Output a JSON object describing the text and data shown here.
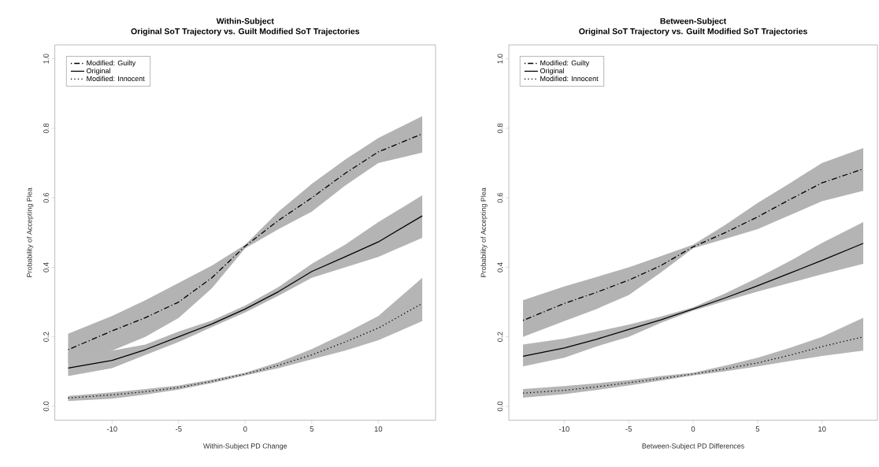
{
  "chart_data": [
    {
      "type": "line",
      "title": "Within-Subject",
      "subtitle": "Original SoT Trajectory vs. Guilt Modified SoT Trajectories",
      "xlabel": "Within-Subject PD Change",
      "ylabel": "Probability of Accepting Plea",
      "x": [
        -13.3,
        -10,
        -7.5,
        -5,
        -2.5,
        0,
        2.5,
        5,
        7.5,
        10,
        13.3
      ],
      "series": [
        {
          "name": "Modified: Guilty",
          "color": "#000000",
          "line_style": "dashdot",
          "values": [
            0.163,
            0.217,
            0.255,
            0.3,
            0.37,
            0.461,
            0.535,
            0.6,
            0.67,
            0.732,
            0.784
          ],
          "lower": [
            0.125,
            0.16,
            0.2,
            0.254,
            0.34,
            0.455,
            0.51,
            0.56,
            0.635,
            0.7,
            0.73
          ],
          "upper": [
            0.209,
            0.26,
            0.305,
            0.355,
            0.405,
            0.465,
            0.56,
            0.64,
            0.71,
            0.772,
            0.835
          ]
        },
        {
          "name": "Original",
          "color": "#000000",
          "line_style": "solid",
          "values": [
            0.11,
            0.132,
            0.163,
            0.2,
            0.237,
            0.28,
            0.33,
            0.388,
            0.43,
            0.473,
            0.548
          ],
          "lower": [
            0.087,
            0.11,
            0.148,
            0.185,
            0.228,
            0.27,
            0.318,
            0.37,
            0.4,
            0.43,
            0.485
          ],
          "upper": [
            0.155,
            0.16,
            0.178,
            0.215,
            0.247,
            0.29,
            0.343,
            0.41,
            0.465,
            0.53,
            0.607
          ]
        },
        {
          "name": "Modified: Innocent",
          "color": "#000000",
          "line_style": "dotted",
          "values": [
            0.024,
            0.033,
            0.042,
            0.054,
            0.072,
            0.093,
            0.118,
            0.148,
            0.185,
            0.225,
            0.296
          ],
          "lower": [
            0.015,
            0.022,
            0.034,
            0.048,
            0.067,
            0.089,
            0.11,
            0.135,
            0.16,
            0.19,
            0.245
          ],
          "upper": [
            0.03,
            0.04,
            0.05,
            0.06,
            0.077,
            0.097,
            0.127,
            0.165,
            0.21,
            0.26,
            0.37
          ]
        }
      ],
      "xlim": [
        -14.3,
        14.3
      ],
      "ylim": [
        -0.04,
        1.04
      ],
      "xticks": [
        -10,
        -5,
        0,
        5,
        10
      ],
      "yticks": [
        {
          "value": 0,
          "label": "0.0"
        },
        {
          "value": 0.2,
          "label": "0.2"
        },
        {
          "value": 0.4,
          "label": "0.4"
        },
        {
          "value": 0.6,
          "label": "0.6"
        },
        {
          "value": 0.8,
          "label": "0.8"
        },
        {
          "value": 1,
          "label": "1.0"
        }
      ],
      "legend": "top left"
    },
    {
      "type": "line",
      "title": "Between-Subject",
      "subtitle": "Original SoT Trajectory vs. Guilt Modified SoT Trajectories",
      "xlabel": "Between-Subject PD Differences",
      "ylabel": "Probability of Accepting Plea",
      "x": [
        -13.2,
        -10,
        -7.5,
        -5,
        -2.5,
        0,
        2.5,
        5,
        7.5,
        10,
        13.2
      ],
      "series": [
        {
          "name": "Modified: Guilty",
          "color": "#000000",
          "line_style": "dashdot",
          "values": [
            0.247,
            0.296,
            0.328,
            0.363,
            0.405,
            0.459,
            0.5,
            0.545,
            0.595,
            0.643,
            0.683
          ],
          "lower": [
            0.2,
            0.245,
            0.28,
            0.32,
            0.385,
            0.455,
            0.482,
            0.51,
            0.55,
            0.59,
            0.62
          ],
          "upper": [
            0.305,
            0.345,
            0.372,
            0.4,
            0.432,
            0.465,
            0.522,
            0.585,
            0.642,
            0.7,
            0.743
          ]
        },
        {
          "name": "Original",
          "color": "#000000",
          "line_style": "solid",
          "values": [
            0.144,
            0.168,
            0.193,
            0.221,
            0.249,
            0.28,
            0.312,
            0.347,
            0.383,
            0.42,
            0.469
          ],
          "lower": [
            0.115,
            0.14,
            0.172,
            0.2,
            0.24,
            0.275,
            0.303,
            0.33,
            0.355,
            0.38,
            0.41
          ],
          "upper": [
            0.178,
            0.195,
            0.215,
            0.235,
            0.258,
            0.285,
            0.325,
            0.37,
            0.418,
            0.47,
            0.53
          ]
        },
        {
          "name": "Modified: Innocent",
          "color": "#000000",
          "line_style": "dotted",
          "values": [
            0.038,
            0.046,
            0.056,
            0.068,
            0.08,
            0.093,
            0.108,
            0.125,
            0.147,
            0.172,
            0.2
          ],
          "lower": [
            0.025,
            0.035,
            0.047,
            0.06,
            0.074,
            0.089,
            0.101,
            0.115,
            0.13,
            0.145,
            0.16
          ],
          "upper": [
            0.05,
            0.058,
            0.066,
            0.075,
            0.087,
            0.097,
            0.117,
            0.14,
            0.168,
            0.2,
            0.255
          ]
        }
      ],
      "xlim": [
        -14.3,
        14.3
      ],
      "ylim": [
        -0.04,
        1.04
      ],
      "xticks": [
        -10,
        -5,
        0,
        5,
        10
      ],
      "yticks": [
        {
          "value": 0,
          "label": "0.0"
        },
        {
          "value": 0.2,
          "label": "0.2"
        },
        {
          "value": 0.4,
          "label": "0.4"
        },
        {
          "value": 0.6,
          "label": "0.6"
        },
        {
          "value": 0.8,
          "label": "0.8"
        },
        {
          "value": 1,
          "label": "1.0"
        }
      ],
      "legend": "top left"
    }
  ]
}
